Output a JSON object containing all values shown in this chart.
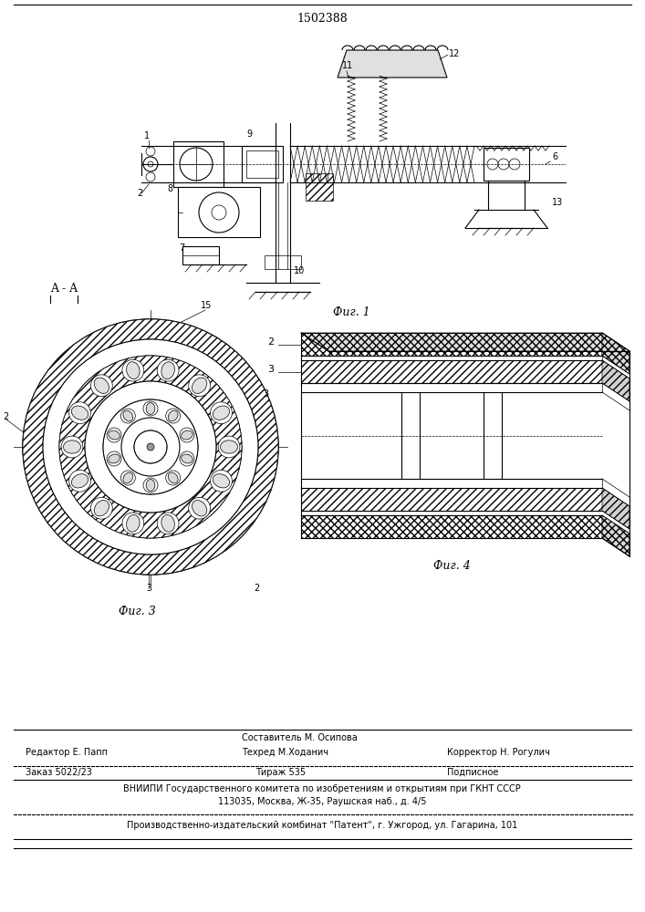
{
  "patent_number": "1502388",
  "bg_color": "#ffffff",
  "line_color": "#000000",
  "fig_width": 7.07,
  "fig_height": 10.0,
  "fig1_caption": "Фиг. 1",
  "fig3_caption": "Фиг. 3",
  "fig4_caption": "Фиг. 4",
  "section_label": "A - A",
  "footer_sestavitel": "Составитель М. Осипова",
  "footer_redaktor": "Редактор Е. Папп",
  "footer_tehred": "Техред М.Ходанич",
  "footer_korrektor": "Корректор Н. Рогулич",
  "footer_zakaz": "Заказ 5022/23",
  "footer_tirazh": "Тираж 535",
  "footer_podpisnoe": "Подписное",
  "footer_vniiipi": "ВНИИПИ Государственного комитета по изобретениям и открытиям при ГКНТ СССР",
  "footer_address": "113035, Москва, Ж-35, Раушская наб., д. 4/5",
  "footer_patent": "Производственно-издательский комбинат \"Патент\", г. Ужгород, ул. Гагарина, 101"
}
